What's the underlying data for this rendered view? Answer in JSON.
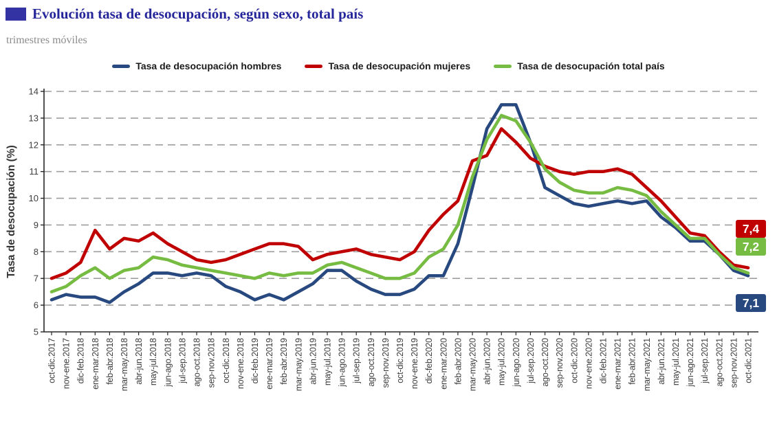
{
  "header": {
    "title": "Evolución tasa de desocupación, según sexo, total país",
    "subtitle": "trimestres móviles",
    "title_color": "#26269b",
    "accent_color": "#3333a3"
  },
  "chart_data": {
    "type": "line",
    "title": "Evolución tasa de desocupación, según sexo, total país",
    "subtitle": "trimestres móviles",
    "xlabel": "",
    "ylabel": "Tasa de desocupación (%)",
    "ylim": [
      5,
      14
    ],
    "yticks": [
      5,
      6,
      7,
      8,
      9,
      10,
      11,
      12,
      13,
      14
    ],
    "grid": "horizontal-dashed",
    "legend_position": "top-center",
    "grid_color": "#9e9e9e",
    "axis_color": "#262626",
    "tick_label_color": "#3d3d3d",
    "categories": [
      "oct-dic.2017",
      "nov-ene.2017",
      "dic-feb.2018",
      "ene-mar.2018",
      "feb-abr.2018",
      "mar-may.2018",
      "abr-jun.2018",
      "may-jul.2018",
      "jun-ago.2018",
      "jul-sep.2018",
      "ago-oct.2018",
      "sep-nov.2018",
      "oct-dic.2018",
      "nov-ene.2018",
      "dic-feb.2019",
      "ene-mar.2019",
      "feb-abr.2019",
      "mar-may.2019",
      "abr-jun.2019",
      "may-jul.2019",
      "jun-ago.2019",
      "jul-sep.2019",
      "ago-oct.2019",
      "sep-nov.2019",
      "oct-dic.2019",
      "nov-ene.2019",
      "dic-feb.2020",
      "ene-mar.2020",
      "feb-abr.2020",
      "mar-may.2020",
      "abr-jun.2020",
      "may-jul.2020",
      "jun-ago.2020",
      "jul-sep.2020",
      "ago-oct.2020",
      "sep-nov.2020",
      "oct-dic.2020",
      "nov-ene.2020",
      "dic-feb.2021",
      "ene-mar.2021",
      "feb-abr.2021",
      "mar-may.2021",
      "abr-jun.2021",
      "may-jul.2021",
      "jun-ago.2021",
      "jul-sep.2021",
      "ago-oct.2021",
      "sep-nov.2021",
      "oct-dic.2021"
    ],
    "series": [
      {
        "key": "hombres",
        "name": "Tasa de desocupación hombres",
        "color": "#28497f",
        "end_label": "7,1",
        "values": [
          6.2,
          6.4,
          6.3,
          6.3,
          6.1,
          6.5,
          6.8,
          7.2,
          7.2,
          7.1,
          7.2,
          7.1,
          6.7,
          6.5,
          6.2,
          6.4,
          6.2,
          6.5,
          6.8,
          7.3,
          7.3,
          6.9,
          6.6,
          6.4,
          6.4,
          6.6,
          7.1,
          7.1,
          8.3,
          10.4,
          12.6,
          13.5,
          13.5,
          12.1,
          10.4,
          10.1,
          9.8,
          9.7,
          9.8,
          9.9,
          9.8,
          9.9,
          9.3,
          8.9,
          8.4,
          8.4,
          7.9,
          7.3,
          7.1
        ]
      },
      {
        "key": "mujeres",
        "name": "Tasa de desocupación mujeres",
        "color": "#c00000",
        "end_label": "7,4",
        "values": [
          7.0,
          7.2,
          7.6,
          8.8,
          8.1,
          8.5,
          8.4,
          8.7,
          8.3,
          8.0,
          7.7,
          7.6,
          7.7,
          7.9,
          8.1,
          8.3,
          8.3,
          8.2,
          7.7,
          7.9,
          8.0,
          8.1,
          7.9,
          7.8,
          7.7,
          8.0,
          8.8,
          9.4,
          9.9,
          11.4,
          11.6,
          12.6,
          12.1,
          11.5,
          11.2,
          11.0,
          10.9,
          11.0,
          11.0,
          11.1,
          10.9,
          10.4,
          9.9,
          9.3,
          8.7,
          8.6,
          8.0,
          7.5,
          7.4
        ]
      },
      {
        "key": "total",
        "name": "Tasa de desocupación total país",
        "color": "#77bc42",
        "end_label": "7,2",
        "values": [
          6.5,
          6.7,
          7.1,
          7.4,
          7.0,
          7.3,
          7.4,
          7.8,
          7.7,
          7.5,
          7.4,
          7.3,
          7.2,
          7.1,
          7.0,
          7.2,
          7.1,
          7.2,
          7.2,
          7.5,
          7.6,
          7.4,
          7.2,
          7.0,
          7.0,
          7.2,
          7.8,
          8.1,
          9.0,
          10.8,
          12.2,
          13.1,
          12.9,
          12.1,
          11.1,
          10.6,
          10.3,
          10.2,
          10.2,
          10.4,
          10.3,
          10.1,
          9.5,
          9.0,
          8.5,
          8.5,
          7.9,
          7.4,
          7.2
        ]
      }
    ]
  }
}
